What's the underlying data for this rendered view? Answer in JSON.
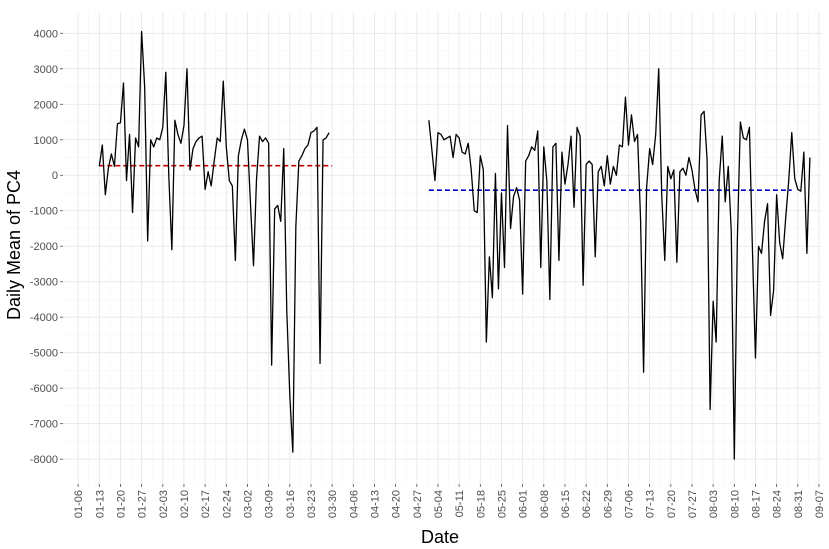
{
  "chart_data": {
    "type": "line",
    "title": "",
    "xlabel": "Date",
    "ylabel": "Daily Mean of PC4",
    "x_tick_labels": [
      "01-06",
      "01-13",
      "01-20",
      "01-27",
      "02-03",
      "02-10",
      "02-17",
      "02-24",
      "03-02",
      "03-09",
      "03-16",
      "03-23",
      "03-30",
      "04-06",
      "04-13",
      "04-20",
      "04-27",
      "05-04",
      "05-11",
      "05-18",
      "05-25",
      "06-01",
      "06-08",
      "06-15",
      "06-22",
      "06-29",
      "07-06",
      "07-13",
      "07-20",
      "07-27",
      "08-03",
      "08-10",
      "08-17",
      "08-24",
      "08-31",
      "09-07"
    ],
    "y_ticks": [
      -8000,
      -7000,
      -6000,
      -5000,
      -4000,
      -3000,
      -2000,
      -1000,
      0,
      1000,
      2000,
      3000,
      4000
    ],
    "ylim": [
      -8700,
      4600
    ],
    "xlim_days": [
      1,
      252
    ],
    "grid": true,
    "segments": [
      {
        "x_start": "01-13",
        "values": [
          250,
          850,
          -550,
          200,
          600,
          250,
          1450,
          1480,
          2600,
          -150,
          1150,
          -1050,
          1050,
          800,
          4050,
          2500,
          -1850,
          1000,
          800,
          1050,
          1000,
          1350,
          2900,
          -50,
          -2100,
          1550,
          1150,
          900,
          1400,
          3000,
          150,
          750,
          950,
          1050,
          1100,
          -400,
          100,
          -300,
          400,
          1050,
          950,
          2650,
          800,
          -150,
          -300,
          -2400,
          550,
          1000,
          1300,
          1000,
          -800,
          -2550,
          -100,
          1100,
          950,
          1050,
          900,
          -5350,
          -950,
          -850,
          -1300,
          750,
          -3800,
          -6200,
          -7800,
          -1450,
          400,
          550,
          750,
          850,
          1200,
          1250,
          1350,
          -5300,
          1000,
          1050,
          1200
        ]
      },
      {
        "x_start": "05-01",
        "values": [
          1550,
          700,
          -150,
          1200,
          1150,
          1000,
          1050,
          1100,
          500,
          1150,
          1050,
          650,
          600,
          900,
          150,
          -1000,
          -1050,
          550,
          150,
          -4700,
          -2300,
          -3450,
          50,
          -3200,
          -500,
          -2600,
          1400,
          -1500,
          -600,
          -350,
          -700,
          -3350,
          400,
          550,
          800,
          700,
          1250,
          -2600,
          800,
          -150,
          -3500,
          800,
          900,
          -2400,
          650,
          -250,
          300,
          1100,
          -900,
          1350,
          1100,
          -3100,
          300,
          400,
          300,
          -2300,
          100,
          250,
          -300,
          550,
          -250,
          250,
          0,
          850,
          800,
          2200,
          850,
          1700,
          950,
          1150,
          -1250,
          -5550,
          -350,
          750,
          300,
          1150,
          3000,
          -550,
          -2400,
          250,
          -100,
          150,
          -2450,
          100,
          200,
          0,
          500,
          150,
          -400,
          -750,
          1700,
          1800,
          450,
          -6600,
          -3550,
          -4700,
          -150,
          1100,
          -750,
          250,
          -1600,
          -8000,
          -1850,
          1500,
          1050,
          1000,
          1350,
          -2100,
          -5150,
          -2000,
          -2200,
          -1300,
          -800,
          -3950,
          -3250,
          -550,
          -1900,
          -2350,
          -1200,
          -150,
          1200,
          -100,
          -400,
          -450,
          650,
          -2200,
          500
        ]
      }
    ],
    "reference_lines": [
      {
        "value": 270,
        "x_from": "01-13",
        "x_to": "03-30",
        "color": "#cc0000"
      },
      {
        "value": -420,
        "x_from": "05-01",
        "x_to": "08-29",
        "color": "#0000cc"
      }
    ],
    "line_color": "#000000"
  }
}
